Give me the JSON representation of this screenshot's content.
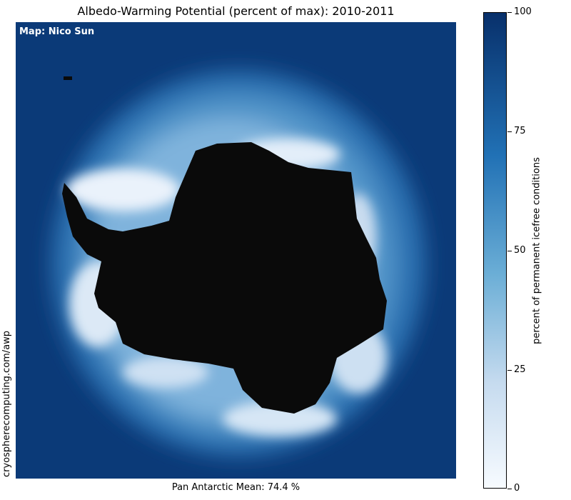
{
  "title": "Albedo-Warming Potential (percent of max): 2010-2011",
  "map_credit": "Map: Nico Sun",
  "source_url": "cryospherecomputing.com/awp",
  "mean_label": "Pan Antarctic Mean: 74.4 %",
  "colorbar": {
    "label": "percent of permanent icefree conditions",
    "ticks": [
      "100",
      "75",
      "50",
      "25",
      "0"
    ],
    "colors": {
      "top": "#08306b",
      "upper_mid": "#2171b5",
      "mid": "#6baed6",
      "lower_mid": "#c6dbef",
      "bottom": "#f7fbff"
    }
  },
  "map_colors": {
    "ocean": "#0b3a78",
    "land": "#0a0a0a"
  }
}
